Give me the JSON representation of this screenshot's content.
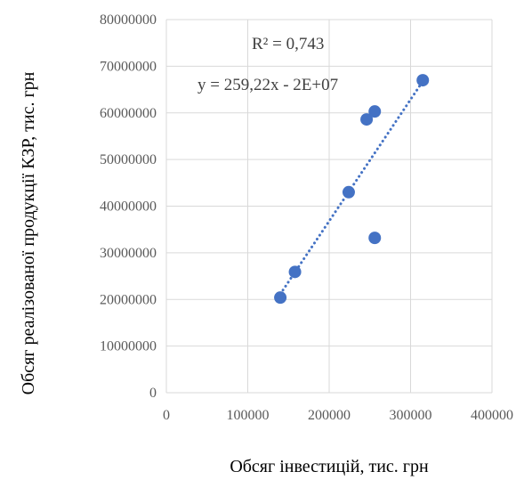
{
  "chart_data": {
    "type": "scatter",
    "title": "",
    "xlabel": "Обсяг інвестицій, тис. грн",
    "ylabel": "Обсяг реалізованої продукції КЗР, тис. грн",
    "xlim": [
      0,
      400000
    ],
    "ylim": [
      0,
      80000000
    ],
    "x_ticks": [
      "0",
      "100000",
      "200000",
      "300000",
      "400000"
    ],
    "y_ticks": [
      "0",
      "10000000",
      "20000000",
      "30000000",
      "40000000",
      "50000000",
      "60000000",
      "70000000",
      "80000000"
    ],
    "grid": true,
    "x": [
      140000,
      158000,
      224000,
      246000,
      256000,
      256000,
      315000
    ],
    "y": [
      20400000,
      25900000,
      43000000,
      58600000,
      60300000,
      33200000,
      67000000
    ],
    "trendline": {
      "type": "linear",
      "equation": "y = 259,22x - 2E+07",
      "r_squared": "R² = 0,743",
      "x_range": [
        140000,
        315000
      ]
    },
    "colors": {
      "points": "#4472C4",
      "trendline": "#4472C4",
      "grid": "#D9D9D9"
    }
  }
}
